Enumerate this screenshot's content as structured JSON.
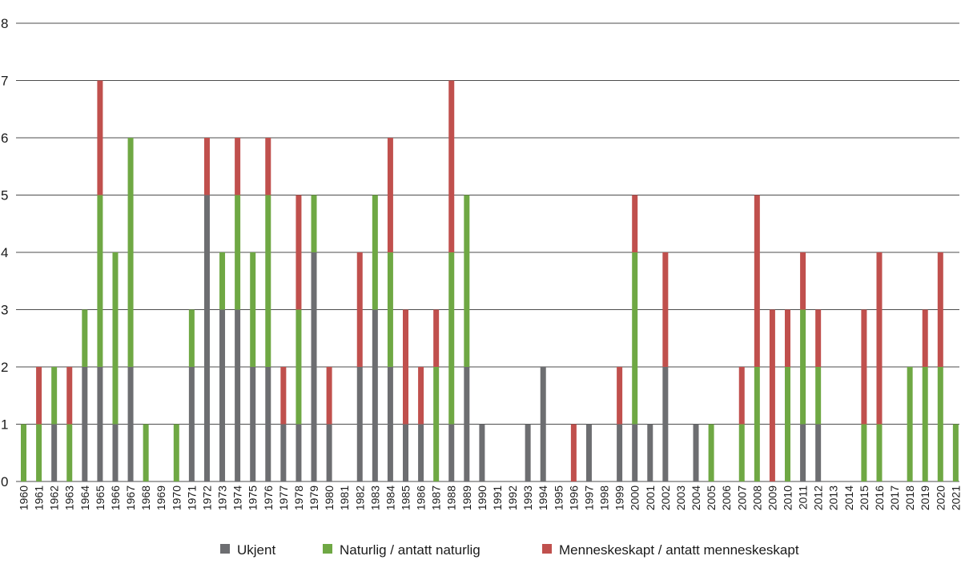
{
  "chart_data": {
    "type": "bar",
    "stacked": true,
    "title": "",
    "xlabel": "",
    "ylabel": "",
    "ylim": [
      0,
      8
    ],
    "yticks": [
      "0",
      "1",
      "2",
      "3",
      "4",
      "5",
      "6",
      "7",
      "8"
    ],
    "grid": true,
    "legend_position": "bottom-center",
    "categories": [
      "1960",
      "1961",
      "1962",
      "1963",
      "1964",
      "1965",
      "1966",
      "1967",
      "1968",
      "1969",
      "1970",
      "1971",
      "1972",
      "1973",
      "1974",
      "1975",
      "1976",
      "1977",
      "1978",
      "1979",
      "1980",
      "1981",
      "1982",
      "1983",
      "1984",
      "1985",
      "1986",
      "1987",
      "1988",
      "1989",
      "1990",
      "1991",
      "1992",
      "1993",
      "1994",
      "1995",
      "1996",
      "1997",
      "1998",
      "1999",
      "2000",
      "2001",
      "2002",
      "2003",
      "2004",
      "2005",
      "2006",
      "2007",
      "2008",
      "2009",
      "2010",
      "2011",
      "2012",
      "2013",
      "2014",
      "2015",
      "2016",
      "2017",
      "2018",
      "2019",
      "2020",
      "2021"
    ],
    "series": [
      {
        "name": "Ukjent",
        "color": "#6d6e71",
        "values": [
          0,
          0,
          1,
          0,
          2,
          2,
          1,
          2,
          0,
          0,
          0,
          2,
          5,
          3,
          3,
          2,
          2,
          1,
          1,
          4,
          1,
          0,
          2,
          3,
          2,
          1,
          1,
          0,
          1,
          2,
          1,
          0,
          0,
          1,
          2,
          0,
          0,
          1,
          0,
          1,
          1,
          1,
          2,
          0,
          1,
          0,
          0,
          0,
          0,
          0,
          0,
          1,
          1,
          0,
          0,
          0,
          0,
          0,
          0,
          0,
          0,
          0
        ]
      },
      {
        "name": "Naturlig / antatt naturlig",
        "color": "#6fa844",
        "values": [
          1,
          1,
          1,
          1,
          1,
          3,
          3,
          4,
          1,
          0,
          1,
          1,
          0,
          1,
          2,
          2,
          3,
          0,
          2,
          1,
          0,
          0,
          0,
          2,
          2,
          0,
          0,
          2,
          3,
          3,
          0,
          0,
          0,
          0,
          0,
          0,
          0,
          0,
          0,
          0,
          3,
          0,
          0,
          0,
          0,
          1,
          0,
          1,
          2,
          0,
          2,
          2,
          1,
          0,
          0,
          1,
          1,
          0,
          2,
          2,
          2,
          1
        ]
      },
      {
        "name": "Menneskeskapt / antatt menneskeskapt",
        "color": "#c0504d",
        "values": [
          0,
          1,
          0,
          1,
          0,
          2,
          0,
          0,
          0,
          0,
          0,
          0,
          1,
          0,
          1,
          0,
          1,
          1,
          2,
          0,
          1,
          0,
          2,
          0,
          2,
          2,
          1,
          1,
          3,
          0,
          0,
          0,
          0,
          0,
          0,
          0,
          1,
          0,
          0,
          1,
          1,
          0,
          2,
          0,
          0,
          0,
          0,
          1,
          3,
          3,
          1,
          1,
          1,
          0,
          0,
          2,
          3,
          0,
          0,
          1,
          2,
          0
        ]
      }
    ]
  }
}
